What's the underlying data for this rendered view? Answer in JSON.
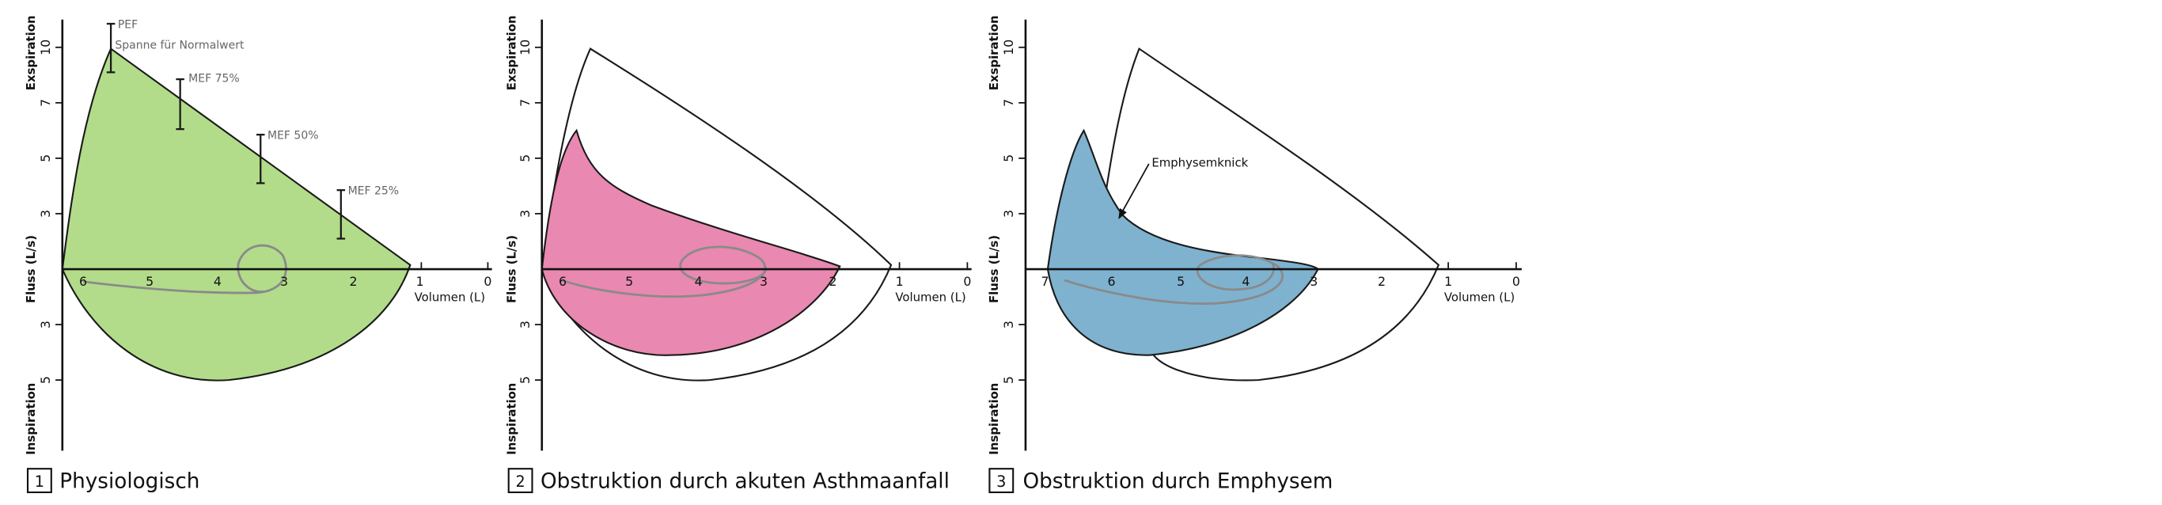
{
  "panels": [
    {
      "number": "1",
      "caption": "Physiologisch",
      "fill_color": "#b2dc89",
      "volume_ticks": [
        "6",
        "4",
        "5",
        "3",
        "2",
        "1",
        "0"
      ],
      "y_top_ticks": [
        "10",
        "7",
        "5",
        "3"
      ],
      "y_bottom_ticks": [
        "3",
        "5"
      ],
      "y_label_top": "Exspiration",
      "y_label_mid": "Fluss (L/s)",
      "y_label_bottom": "Inspiration",
      "x_label": "Volumen (L)",
      "annotations": {
        "pef": "PEF",
        "normal_range": "Spanne für Normalwert",
        "mef75": "MEF 75%",
        "mef50": "MEF 50%",
        "mef25": "MEF 25%"
      }
    },
    {
      "number": "2",
      "caption": "Obstruktion durch akuten Asthmaanfall",
      "fill_color": "#e988b0",
      "volume_ticks": [
        "6",
        "5",
        "4",
        "3",
        "2",
        "1",
        "0"
      ],
      "y_top_ticks": [
        "10",
        "7",
        "5",
        "3"
      ],
      "y_bottom_ticks": [
        "3",
        "5"
      ],
      "y_label_top": "Exspiration",
      "y_label_mid": "Fluss (L/s)",
      "y_label_bottom": "Inspiration",
      "x_label": "Volumen (L)"
    },
    {
      "number": "3",
      "caption": "Obstruktion durch Emphysem",
      "fill_color": "#7eb2cf",
      "volume_ticks": [
        "7",
        "6",
        "5",
        "4",
        "3",
        "2",
        "1",
        "0"
      ],
      "y_top_ticks": [
        "10",
        "7",
        "5",
        "3"
      ],
      "y_bottom_ticks": [
        "3",
        "5"
      ],
      "y_label_top": "Exspiration",
      "y_label_mid": "Fluss (L/s)",
      "y_label_bottom": "Inspiration",
      "x_label": "Volumen (L)",
      "annotations": {
        "emphysema_kink": "Emphysemknick"
      }
    }
  ]
}
